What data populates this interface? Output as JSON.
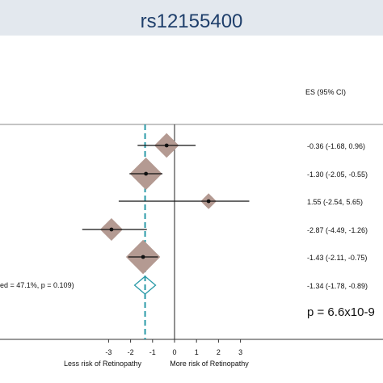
{
  "header": {
    "title": "rs12155400"
  },
  "chart_data": {
    "type": "forest",
    "title": "rs12155400",
    "column_header": "ES (95% CI)",
    "xlim": [
      -4.5,
      3.5
    ],
    "x_ticks": [
      "-3",
      "-2",
      "-1",
      "0",
      "1",
      "2",
      "3"
    ],
    "x_tick_values": [
      -3,
      -2,
      -1,
      0,
      1,
      2,
      3
    ],
    "null_line": 0,
    "pooled_line": -1.34,
    "left_axis_label": "Less risk of Retinopathy",
    "right_axis_label": "More risk of Retinopathy",
    "studies": [
      {
        "es": -0.36,
        "lo": -1.68,
        "hi": 0.96,
        "label": "-0.36 (-1.68, 0.96)",
        "weight": 0.6
      },
      {
        "es": -1.3,
        "lo": -2.05,
        "hi": -0.55,
        "label": "-1.30 (-2.05, -0.55)",
        "weight": 1.0
      },
      {
        "es": 1.55,
        "lo": -2.54,
        "hi": 5.65,
        "label": "1.55 (-2.54, 5.65)",
        "weight": 0.15
      },
      {
        "es": -2.87,
        "lo": -4.49,
        "hi": -1.26,
        "label": "-2.87 (-4.49, -1.26)",
        "weight": 0.5
      },
      {
        "es": -1.43,
        "lo": -2.11,
        "hi": -0.75,
        "label": "-1.43 (-2.11, -0.75)",
        "weight": 1.1
      }
    ],
    "overall": {
      "es": -1.34,
      "lo": -1.78,
      "hi": -0.89,
      "label": "-1.34 (-1.78, -0.89)",
      "text": "ed = 47.1%, p = 0.109)"
    },
    "pvalue_text": "p = 6.6x10-9",
    "colors": {
      "diamond": "#b49a92",
      "overall": "#2a9aa8",
      "pooled_line": "#2a9aa8"
    }
  }
}
